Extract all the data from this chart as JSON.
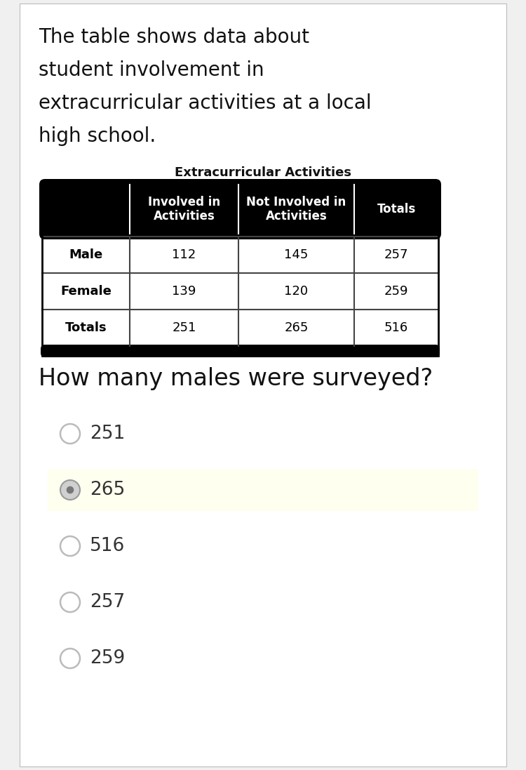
{
  "description_lines": [
    "The table shows data about",
    "student involvement in",
    "extracurricular activities at a local",
    "high school."
  ],
  "table_title": "Extracurricular Activities",
  "col_headers": [
    "Involved in\nActivities",
    "Not Involved in\nActivities",
    "Totals"
  ],
  "row_headers": [
    "Male",
    "Female",
    "Totals"
  ],
  "table_data": [
    [
      112,
      145,
      257
    ],
    [
      139,
      120,
      259
    ],
    [
      251,
      265,
      516
    ]
  ],
  "question": "How many males were surveyed?",
  "choices": [
    "251",
    "265",
    "516",
    "257",
    "259"
  ],
  "selected_choice": 1,
  "bg_color": "#f0f0f0",
  "page_bg": "#ffffff",
  "header_bg": "#000000",
  "header_text": "#ffffff",
  "cell_text": "#000000",
  "selected_bg": "#fffff0",
  "choice_text_color": "#333333",
  "desc_fontsize": 20,
  "table_title_fontsize": 13,
  "header_fontsize": 12,
  "cell_fontsize": 13,
  "question_fontsize": 24,
  "choice_fontsize": 19
}
